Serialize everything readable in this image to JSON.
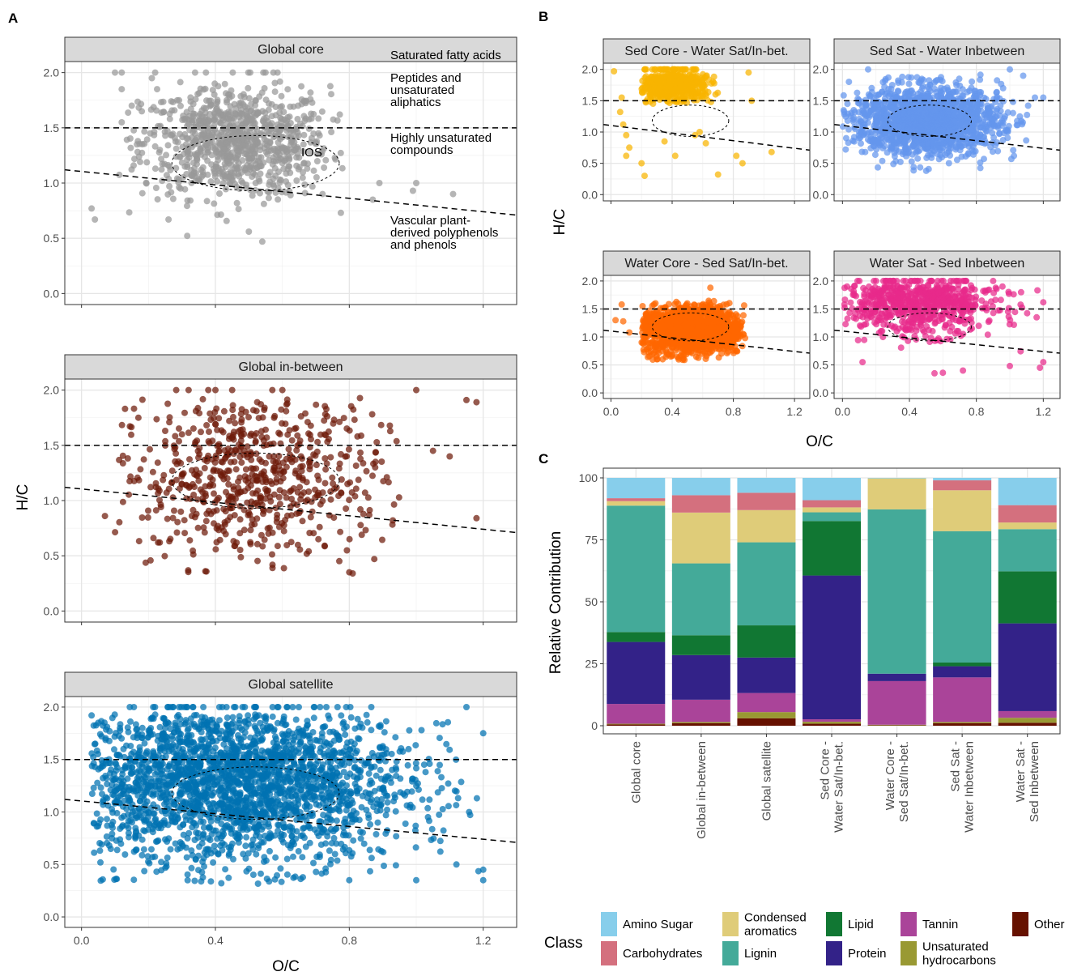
{
  "panel_labels": {
    "a": "A",
    "b": "B",
    "c": "C"
  },
  "axis_labels": {
    "hc": "H/C",
    "oc": "O/C",
    "rel": "Relative Contribution"
  },
  "annotations": {
    "saturated": [
      "Saturated fatty acids"
    ],
    "peptides": [
      "Peptides and",
      "unsaturated",
      "aliphatics"
    ],
    "highly_unsat": [
      "Highly unsaturated",
      "compounds"
    ],
    "vascular": [
      "Vascular plant-",
      "derived polyphenols",
      "and phenols"
    ],
    "ios": "IOS"
  },
  "legend": {
    "title": "Class",
    "items": [
      {
        "lines": [
          "Amino Sugar"
        ],
        "color": "#87CEEB"
      },
      {
        "lines": [
          "Carbohydrates"
        ],
        "color": "#D4707E"
      },
      {
        "lines": [
          "Condensed",
          "aromatics"
        ],
        "color": "#DFCC79"
      },
      {
        "lines": [
          "Lignin"
        ],
        "color": "#44AA99"
      },
      {
        "lines": [
          "Lipid"
        ],
        "color": "#117733"
      },
      {
        "lines": [
          "Protein"
        ],
        "color": "#332288"
      },
      {
        "lines": [
          "Tannin"
        ],
        "color": "#AA4499"
      },
      {
        "lines": [
          "Unsaturated",
          "hydrocarbons"
        ],
        "color": "#999933"
      },
      {
        "lines": [
          "Other"
        ],
        "color": "#661100"
      }
    ]
  },
  "chart_data": [
    {
      "panel": "A",
      "type": "scatter",
      "title": "Global core",
      "xlabel": "",
      "ylabel": "",
      "xlim": [
        -0.05,
        1.3
      ],
      "ylim": [
        -0.1,
        2.1
      ],
      "x_ticks": [
        "0.0",
        "0.4",
        "0.8",
        "1.2"
      ],
      "y_ticks": [
        "0.0",
        "0.5",
        "1.0",
        "1.5",
        "2.0"
      ],
      "color": "#999999",
      "reference_lines": {
        "horizontal_hc": 1.5,
        "sloped": {
          "x0": -0.05,
          "y0": 1.12,
          "x1": 1.3,
          "y1": 0.71
        }
      },
      "ios_circle": {
        "center_oc": 0.52,
        "center_hc": 1.18,
        "radius": 0.25
      },
      "point_cloud": {
        "center": [
          0.46,
          1.37
        ],
        "spread": [
          0.14,
          0.25
        ],
        "ranges": [
          [
            0.1,
            0.78
          ],
          [
            0.47,
            2.0
          ]
        ],
        "approx_n": 900
      },
      "notable_points": [
        [
          0.1,
          2.0
        ],
        [
          0.12,
          2.0
        ],
        [
          0.12,
          1.85
        ],
        [
          0.22,
          2.0
        ],
        [
          0.21,
          1.95
        ],
        [
          0.03,
          0.77
        ],
        [
          0.04,
          0.67
        ],
        [
          0.26,
          0.67
        ],
        [
          0.5,
          0.56
        ],
        [
          0.54,
          0.47
        ],
        [
          0.72,
          0.9
        ],
        [
          0.87,
          0.85
        ],
        [
          0.89,
          1.0
        ],
        [
          0.99,
          0.93
        ],
        [
          1.0,
          1.0
        ],
        [
          1.11,
          0.9
        ],
        [
          0.15,
          1.7
        ],
        [
          0.18,
          1.65
        ],
        [
          0.12,
          1.55
        ]
      ]
    },
    {
      "panel": "A",
      "type": "scatter",
      "title": "Global in-between",
      "xlabel": "",
      "ylabel": "H/C",
      "xlim": [
        -0.05,
        1.3
      ],
      "ylim": [
        -0.1,
        2.1
      ],
      "x_ticks": [
        "0.0",
        "0.4",
        "0.8",
        "1.2"
      ],
      "y_ticks": [
        "0.0",
        "0.5",
        "1.0",
        "1.5",
        "2.0"
      ],
      "color": "#6E1A0A",
      "reference_lines": {
        "horizontal_hc": 1.5,
        "sloped": {
          "x0": -0.05,
          "y0": 1.12,
          "x1": 1.3,
          "y1": 0.71
        }
      },
      "ios_circle": {
        "center_oc": 0.52,
        "center_hc": 1.18,
        "radius": 0.25
      },
      "point_cloud": {
        "center": [
          0.5,
          1.2
        ],
        "spread": [
          0.2,
          0.4
        ],
        "ranges": [
          [
            0.1,
            0.95
          ],
          [
            0.35,
            2.0
          ]
        ],
        "approx_n": 650
      },
      "notable_points": [
        [
          0.07,
          0.86
        ],
        [
          0.13,
          1.83
        ],
        [
          0.17,
          1.75
        ],
        [
          0.32,
          2.0
        ],
        [
          0.4,
          2.0
        ],
        [
          0.45,
          2.0
        ],
        [
          0.57,
          2.0
        ],
        [
          0.6,
          2.0
        ],
        [
          1.0,
          2.0
        ],
        [
          1.15,
          1.91
        ],
        [
          1.18,
          1.89
        ],
        [
          1.05,
          1.45
        ],
        [
          1.1,
          1.4
        ],
        [
          1.18,
          0.84
        ],
        [
          0.81,
          0.34
        ],
        [
          0.8,
          0.35
        ],
        [
          0.37,
          0.36
        ]
      ]
    },
    {
      "panel": "A",
      "type": "scatter",
      "title": "Global satellite",
      "xlabel": "O/C",
      "ylabel": "",
      "xlim": [
        -0.05,
        1.3
      ],
      "ylim": [
        -0.1,
        2.1
      ],
      "x_ticks": [
        "0.0",
        "0.4",
        "0.8",
        "1.2"
      ],
      "y_ticks": [
        "0.0",
        "0.5",
        "1.0",
        "1.5",
        "2.0"
      ],
      "color": "#0072B2",
      "reference_lines": {
        "horizontal_hc": 1.5,
        "sloped": {
          "x0": -0.05,
          "y0": 1.12,
          "x1": 1.3,
          "y1": 0.71
        }
      },
      "ios_circle": {
        "center_oc": 0.52,
        "center_hc": 1.18,
        "radius": 0.25
      },
      "point_cloud": {
        "center": [
          0.45,
          1.3
        ],
        "spread": [
          0.26,
          0.4
        ],
        "ranges": [
          [
            0.03,
            1.2
          ],
          [
            0.3,
            2.0
          ]
        ],
        "approx_n": 2400
      },
      "notable_points": [
        [
          0.03,
          1.92
        ],
        [
          0.05,
          1.85
        ],
        [
          1.0,
          0.35
        ],
        [
          1.2,
          0.35
        ],
        [
          1.2,
          0.45
        ],
        [
          1.12,
          0.5
        ],
        [
          1.15,
          2.0
        ],
        [
          1.2,
          1.75
        ],
        [
          0.8,
          0.35
        ]
      ]
    },
    {
      "panel": "B",
      "type": "scatter",
      "title": "Sed Core - Water Sat/In-bet.",
      "xlabel": "",
      "ylabel": "",
      "xlim": [
        -0.05,
        1.3
      ],
      "ylim": [
        -0.1,
        2.1
      ],
      "x_ticks": [
        "0.0",
        "0.4",
        "0.8",
        "1.2"
      ],
      "y_ticks": [
        "0.0",
        "0.5",
        "1.0",
        "1.5",
        "2.0"
      ],
      "color": "#F8B400",
      "reference_lines": {
        "horizontal_hc": 1.5,
        "sloped": {
          "x0": -0.05,
          "y0": 1.12,
          "x1": 1.3,
          "y1": 0.71
        }
      },
      "ios_circle": {
        "center_oc": 0.52,
        "center_hc": 1.18,
        "radius": 0.25
      },
      "point_cloud": {
        "center": [
          0.4,
          1.75
        ],
        "spread": [
          0.13,
          0.15
        ],
        "ranges": [
          [
            0.2,
            0.72
          ],
          [
            1.45,
            2.0
          ]
        ],
        "approx_n": 500
      },
      "notable_points": [
        [
          0.02,
          1.97
        ],
        [
          0.07,
          1.55
        ],
        [
          0.06,
          1.32
        ],
        [
          0.08,
          1.12
        ],
        [
          0.1,
          0.95
        ],
        [
          0.1,
          0.62
        ],
        [
          0.12,
          0.75
        ],
        [
          0.2,
          0.5
        ],
        [
          0.22,
          0.3
        ],
        [
          0.35,
          0.85
        ],
        [
          0.42,
          0.62
        ],
        [
          0.55,
          0.95
        ],
        [
          0.58,
          1.0
        ],
        [
          0.62,
          0.82
        ],
        [
          0.7,
          0.32
        ],
        [
          0.82,
          0.62
        ],
        [
          0.86,
          0.5
        ],
        [
          1.05,
          0.68
        ],
        [
          0.9,
          1.95
        ],
        [
          0.92,
          1.5
        ]
      ]
    },
    {
      "panel": "B",
      "type": "scatter",
      "title": "Sed Sat - Water Inbetween",
      "xlabel": "",
      "ylabel": "",
      "xlim": [
        -0.05,
        1.3
      ],
      "ylim": [
        -0.1,
        2.1
      ],
      "x_ticks": [
        "0.0",
        "0.4",
        "0.8",
        "1.2"
      ],
      "y_ticks": [
        "0.0",
        "0.5",
        "1.0",
        "1.5",
        "2.0"
      ],
      "color": "#6495ED",
      "reference_lines": {
        "horizontal_hc": 1.5,
        "sloped": {
          "x0": -0.05,
          "y0": 1.12,
          "x1": 1.3,
          "y1": 0.71
        }
      },
      "ios_circle": {
        "center_oc": 0.52,
        "center_hc": 1.18,
        "radius": 0.25
      },
      "point_cloud": {
        "center": [
          0.5,
          1.18
        ],
        "spread": [
          0.22,
          0.27
        ],
        "ranges": [
          [
            0.0,
            1.2
          ],
          [
            0.37,
            2.0
          ]
        ],
        "approx_n": 1600
      },
      "notable_points": [
        [
          0.01,
          1.32
        ],
        [
          0.03,
          1.45
        ],
        [
          1.0,
          2.0
        ],
        [
          1.08,
          1.9
        ],
        [
          1.15,
          1.55
        ],
        [
          1.2,
          1.55
        ],
        [
          0.96,
          1.7
        ],
        [
          0.5,
          0.38
        ]
      ]
    },
    {
      "panel": "B",
      "type": "scatter",
      "title": "Water Core - Sed Sat/In-bet.",
      "xlabel": "",
      "ylabel": "H/C",
      "xlim": [
        -0.05,
        1.3
      ],
      "ylim": [
        -0.1,
        2.1
      ],
      "x_ticks": [
        "0.0",
        "0.4",
        "0.8",
        "1.2"
      ],
      "y_ticks": [
        "0.0",
        "0.5",
        "1.0",
        "1.5",
        "2.0"
      ],
      "color": "#FF6600",
      "reference_lines": {
        "horizontal_hc": 1.5,
        "sloped": {
          "x0": -0.05,
          "y0": 1.12,
          "x1": 1.3,
          "y1": 0.71
        }
      },
      "ios_circle": {
        "center_oc": 0.52,
        "center_hc": 1.18,
        "radius": 0.25
      },
      "point_cloud": {
        "center": [
          0.53,
          1.12
        ],
        "spread": [
          0.17,
          0.22
        ],
        "ranges": [
          [
            0.2,
            0.88
          ],
          [
            0.57,
            1.65
          ]
        ],
        "approx_n": 1500
      },
      "notable_points": [
        [
          0.03,
          1.3
        ],
        [
          0.07,
          1.58
        ],
        [
          0.08,
          1.28
        ],
        [
          0.65,
          1.88
        ],
        [
          0.12,
          1.08
        ]
      ]
    },
    {
      "panel": "B",
      "type": "scatter",
      "title": "Water Sat - Sed Inbetween",
      "xlabel": "",
      "ylabel": "",
      "xlim": [
        -0.05,
        1.3
      ],
      "ylim": [
        -0.1,
        2.1
      ],
      "x_ticks": [
        "0.0",
        "0.4",
        "0.8",
        "1.2"
      ],
      "y_ticks": [
        "0.0",
        "0.5",
        "1.0",
        "1.5",
        "2.0"
      ],
      "color": "#E7298A",
      "reference_lines": {
        "horizontal_hc": 1.5,
        "sloped": {
          "x0": -0.05,
          "y0": 1.12,
          "x1": 1.3,
          "y1": 0.71
        }
      },
      "ios_circle": {
        "center_oc": 0.52,
        "center_hc": 1.18,
        "radius": 0.25
      },
      "point_cloud": {
        "center": [
          0.45,
          1.65
        ],
        "spread": [
          0.24,
          0.3
        ],
        "ranges": [
          [
            0.0,
            1.2
          ],
          [
            0.35,
            2.0
          ]
        ],
        "approx_n": 700
      },
      "notable_points": [
        [
          1.2,
          1.62
        ],
        [
          1.16,
          1.35
        ],
        [
          1.0,
          0.48
        ],
        [
          1.2,
          0.55
        ],
        [
          1.18,
          0.45
        ],
        [
          0.55,
          0.35
        ],
        [
          0.6,
          0.36
        ],
        [
          0.72,
          0.4
        ],
        [
          0.12,
          0.55
        ]
      ]
    },
    {
      "panel": "C",
      "type": "bar",
      "stacked": true,
      "title": "",
      "xlabel": "",
      "ylabel": "Relative Contribution",
      "ylim": [
        0,
        100
      ],
      "y_ticks": [
        "0",
        "25",
        "50",
        "75",
        "100"
      ],
      "categories": [
        [
          "Global core"
        ],
        [
          "Global in-between"
        ],
        [
          "Global satellite"
        ],
        [
          "Sed Core -",
          "Water Sat/In-bet."
        ],
        [
          "Water Core -",
          "Sed Sat/In-bet."
        ],
        [
          "Sed Sat -",
          "Water Inbetween"
        ],
        [
          "Water Sat -",
          "Sed Inbetween"
        ]
      ],
      "series": [
        {
          "name": "Other",
          "color": "#661100",
          "values": [
            0.5,
            1.0,
            3.0,
            0.8,
            0.2,
            1.0,
            1.2
          ]
        },
        {
          "name": "Unsaturated hydrocarbons",
          "color": "#999933",
          "values": [
            0.3,
            0.5,
            2.5,
            0.8,
            0.2,
            0.5,
            2.0
          ]
        },
        {
          "name": "Tannin",
          "color": "#AA4499",
          "values": [
            8.0,
            9.0,
            7.7,
            1.0,
            17.6,
            18.0,
            2.7
          ]
        },
        {
          "name": "Protein",
          "color": "#332288",
          "values": [
            25.0,
            18.0,
            14.3,
            58.0,
            3.0,
            4.5,
            35.4
          ]
        },
        {
          "name": "Lipid",
          "color": "#117733",
          "values": [
            4.0,
            8.0,
            13.0,
            22.0,
            0.0,
            1.5,
            21.0
          ]
        },
        {
          "name": "Lignin",
          "color": "#44AA99",
          "values": [
            51.0,
            29.0,
            33.5,
            3.5,
            66.3,
            53.0,
            17.0
          ]
        },
        {
          "name": "Condensed aromatics",
          "color": "#DFCC79",
          "values": [
            1.8,
            20.5,
            13.0,
            2.0,
            12.5,
            16.5,
            2.7
          ]
        },
        {
          "name": "Carbohydrates",
          "color": "#D4707E",
          "values": [
            1.2,
            7.0,
            7.0,
            2.9,
            0.0,
            4.0,
            7.0
          ]
        },
        {
          "name": "Amino Sugar",
          "color": "#87CEEB",
          "values": [
            8.2,
            7.0,
            6.0,
            9.0,
            0.2,
            1.0,
            11.0
          ]
        }
      ]
    }
  ]
}
